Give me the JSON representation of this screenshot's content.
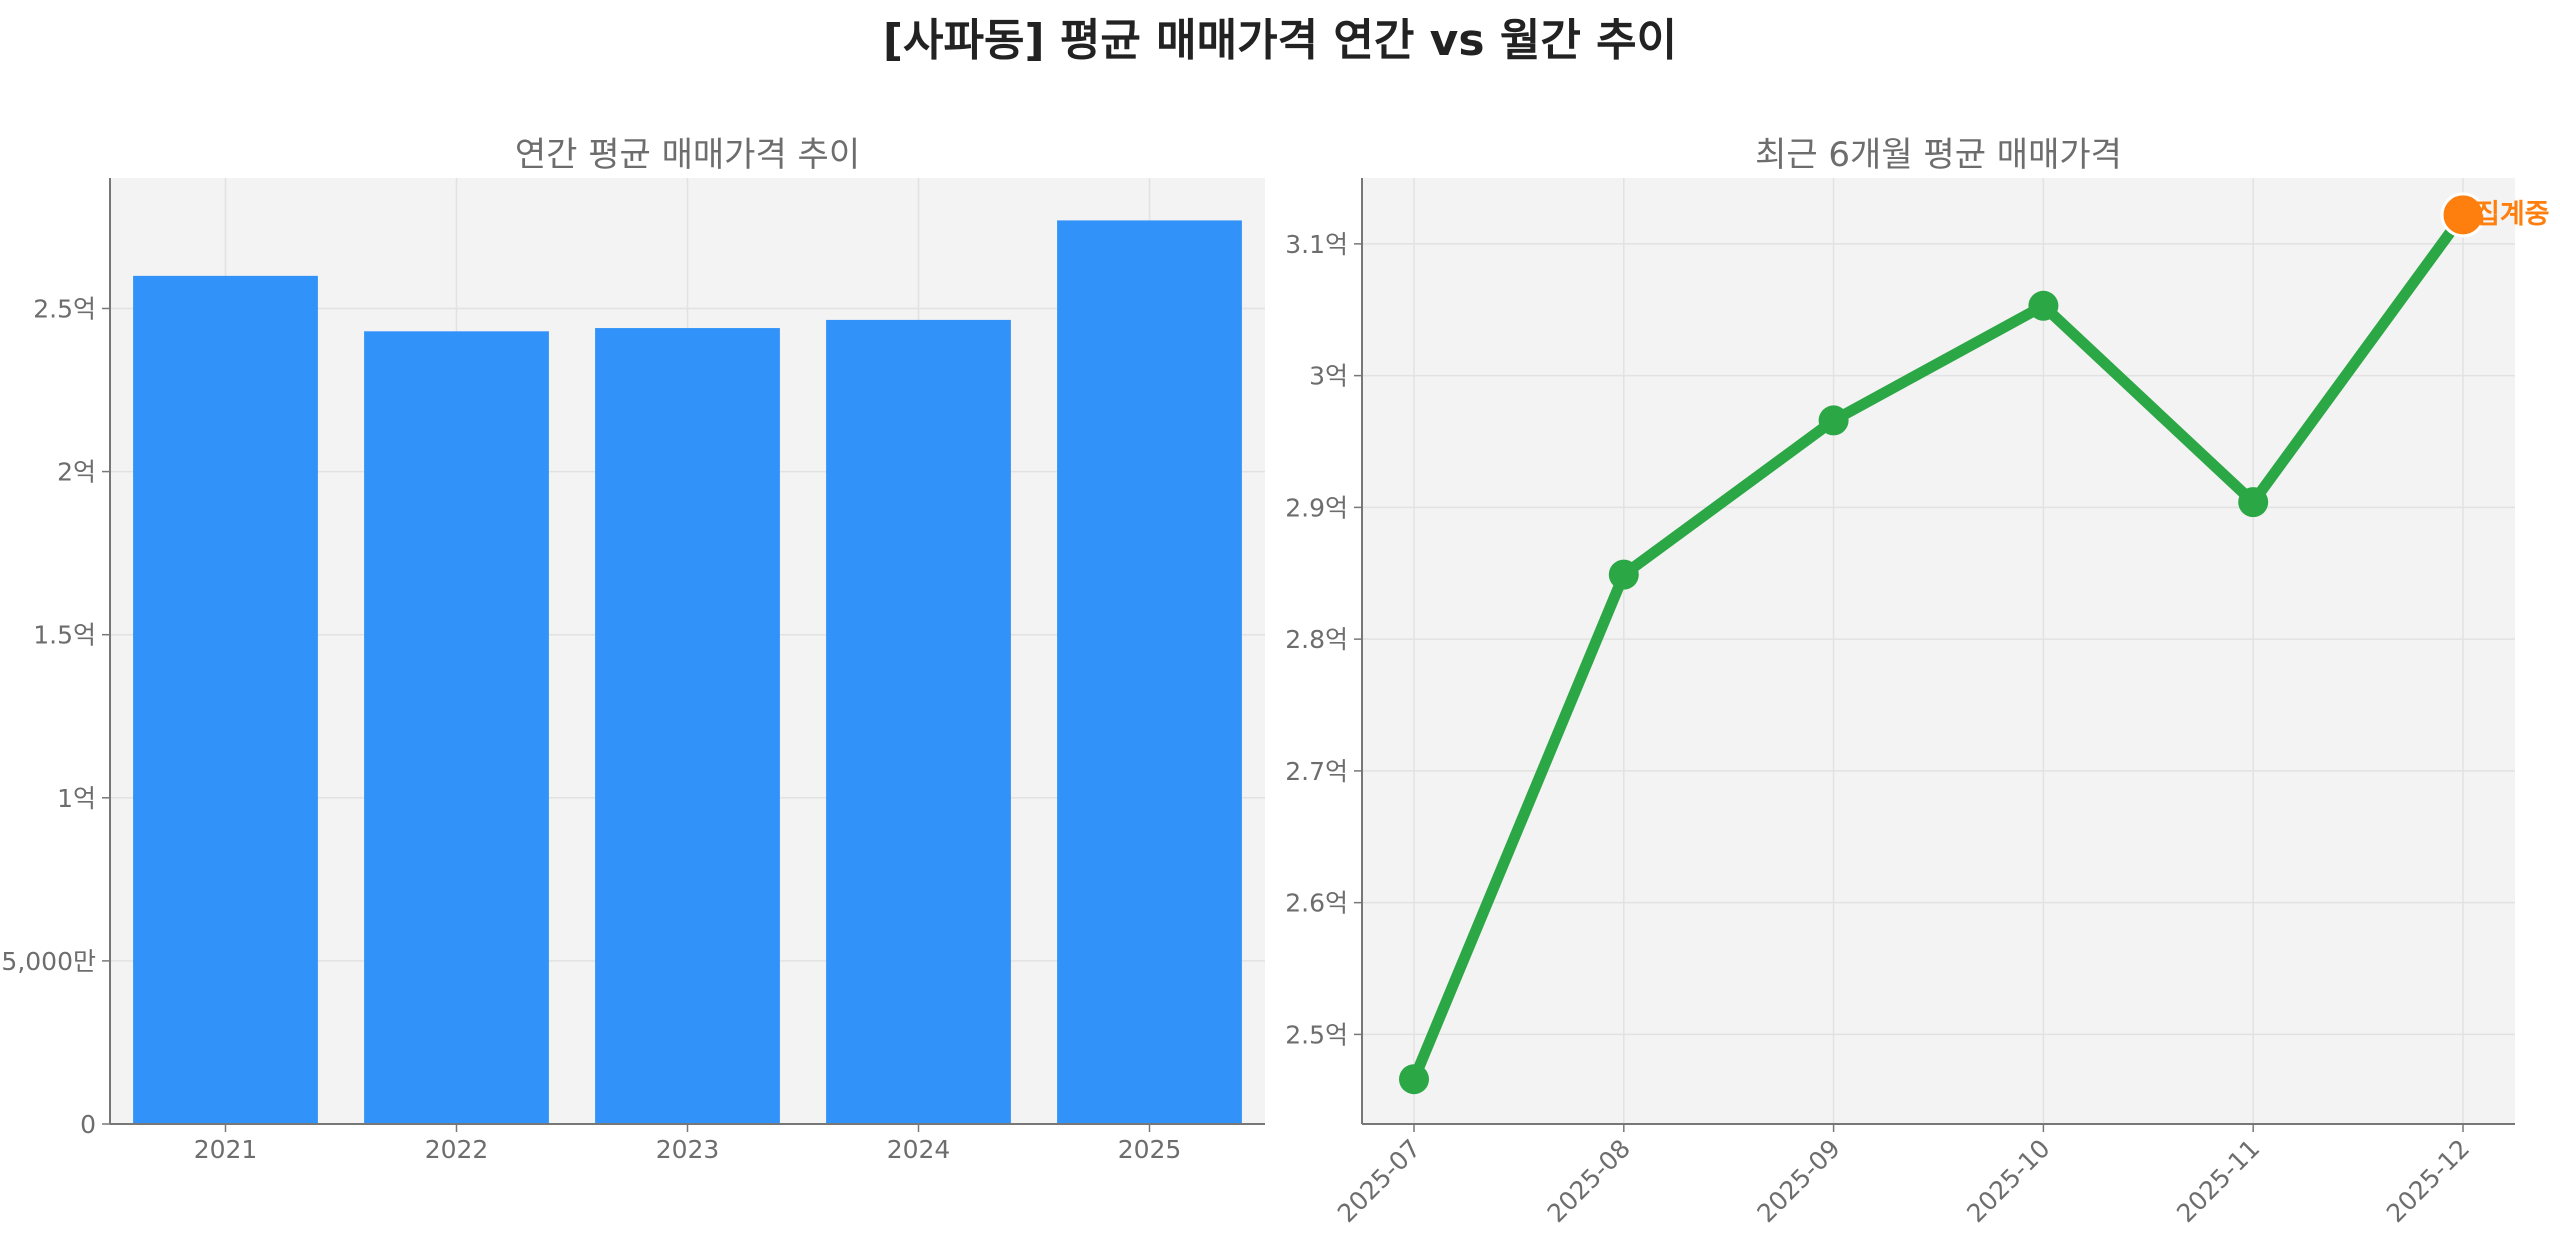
{
  "title": "[사파동] 평균 매매가격 연간 vs 월간 추이",
  "colors": {
    "bar": "#3192F9",
    "line": "#2CA745",
    "highlight": "#FF7F0E",
    "panel_bg": "#F3F3F3",
    "grid": "#E2E2E2",
    "axis_text": "#6D6D6D"
  },
  "chart_data": [
    {
      "type": "bar",
      "title": "연간 평균 매매가격 추이",
      "categories": [
        "2021",
        "2022",
        "2023",
        "2024",
        "2025"
      ],
      "values": [
        260000000,
        243000000,
        244000000,
        246500000,
        277000000
      ],
      "ylim": [
        0,
        290000000
      ],
      "yticks": [
        0,
        50000000,
        100000000,
        150000000,
        200000000,
        250000000
      ],
      "ytick_labels": [
        "0",
        "5,000만",
        "1억",
        "1.5억",
        "2억",
        "2.5억"
      ],
      "xlabel": "",
      "ylabel": "",
      "grid": true
    },
    {
      "type": "line",
      "title": "최근 6개월 평균 매매가격",
      "categories": [
        "2025-07",
        "2025-08",
        "2025-09",
        "2025-10",
        "2025-11",
        "2025-12"
      ],
      "values": [
        246600000,
        284900000,
        296600000,
        305300000,
        290400000,
        312200000
      ],
      "ylim": [
        243200000,
        315000000
      ],
      "yticks": [
        250000000,
        260000000,
        270000000,
        280000000,
        290000000,
        300000000,
        310000000
      ],
      "ytick_labels": [
        "2.5억",
        "2.6억",
        "2.7억",
        "2.8억",
        "2.9억",
        "3억",
        "3.1억"
      ],
      "highlight_point": {
        "category": "2025-12",
        "annotation": "집계중"
      },
      "xlabel": "",
      "ylabel": "",
      "grid": true
    }
  ]
}
